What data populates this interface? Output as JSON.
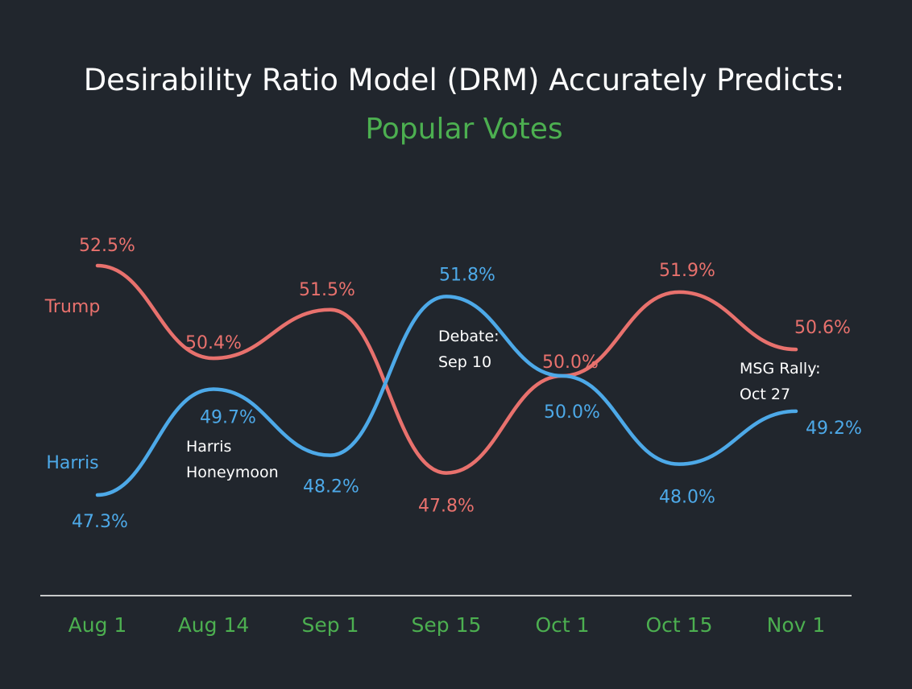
{
  "chart_data": {
    "type": "line",
    "title": "Desirability Ratio Model (DRM) Accurately Predicts:",
    "subtitle": "Popular Votes",
    "categories": [
      "Aug 1",
      "Aug 14",
      "Sep 1",
      "Sep 15",
      "Oct 1",
      "Oct 15",
      "Nov 1"
    ],
    "series": [
      {
        "name": "Trump",
        "color": "#e8716d",
        "values": [
          52.5,
          50.4,
          51.5,
          47.8,
          50.0,
          51.9,
          50.6
        ],
        "labels": [
          "52.5%",
          "50.4%",
          "51.5%",
          "47.8%",
          "50.0%",
          "51.9%",
          "50.6%"
        ]
      },
      {
        "name": "Harris",
        "color": "#4da9e8",
        "values": [
          47.3,
          49.7,
          48.2,
          51.8,
          50.0,
          48.0,
          49.2
        ],
        "labels": [
          "47.3%",
          "49.7%",
          "48.2%",
          "51.8%",
          "50.0%",
          "48.0%",
          "49.2%"
        ]
      }
    ],
    "annotations": [
      {
        "id": "honeymoon",
        "lines": [
          "Harris",
          "Honeymoon"
        ]
      },
      {
        "id": "debate",
        "lines": [
          "Debate:",
          "Sep 10"
        ]
      },
      {
        "id": "msg",
        "lines": [
          "MSG Rally:",
          "Oct 27"
        ]
      }
    ],
    "ylim": [
      47.0,
      53.0
    ],
    "grid": false,
    "legend": "inline-left",
    "colors": {
      "background": "#21262d",
      "title": "#ffffff",
      "subtitle": "#4caf50",
      "tick_labels": "#4caf50",
      "axis": "#ffffff"
    }
  }
}
